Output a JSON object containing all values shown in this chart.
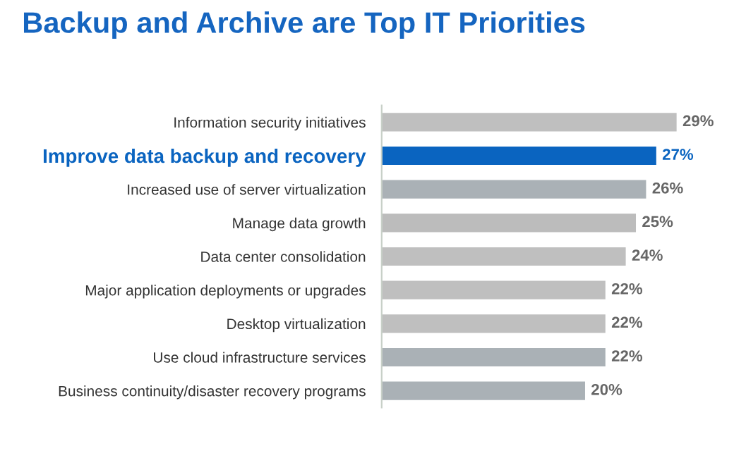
{
  "chart_data": {
    "type": "bar",
    "orientation": "horizontal",
    "title": "Backup and Archive are Top IT Priorities",
    "categories": [
      "Information security initiatives",
      "Improve data backup and recovery",
      "Increased use of server virtualization",
      "Manage data growth",
      "Data center consolidation",
      "Major application deployments or upgrades",
      "Desktop virtualization",
      "Use cloud infrastructure services",
      "Business continuity/disaster recovery programs"
    ],
    "values": [
      29,
      27,
      26,
      25,
      24,
      22,
      22,
      22,
      20
    ],
    "value_labels": [
      "29%",
      "27%",
      "26%",
      "25%",
      "24%",
      "22%",
      "22%",
      "22%",
      "20%"
    ],
    "colors": [
      "#bfbfbf",
      "#0a64c0",
      "#aab1b6",
      "#bcbcbc",
      "#bfbfbf",
      "#bfbfbf",
      "#bfbfbf",
      "#aab1b6",
      "#aab1b6"
    ],
    "grid": false,
    "legend": false
  }
}
